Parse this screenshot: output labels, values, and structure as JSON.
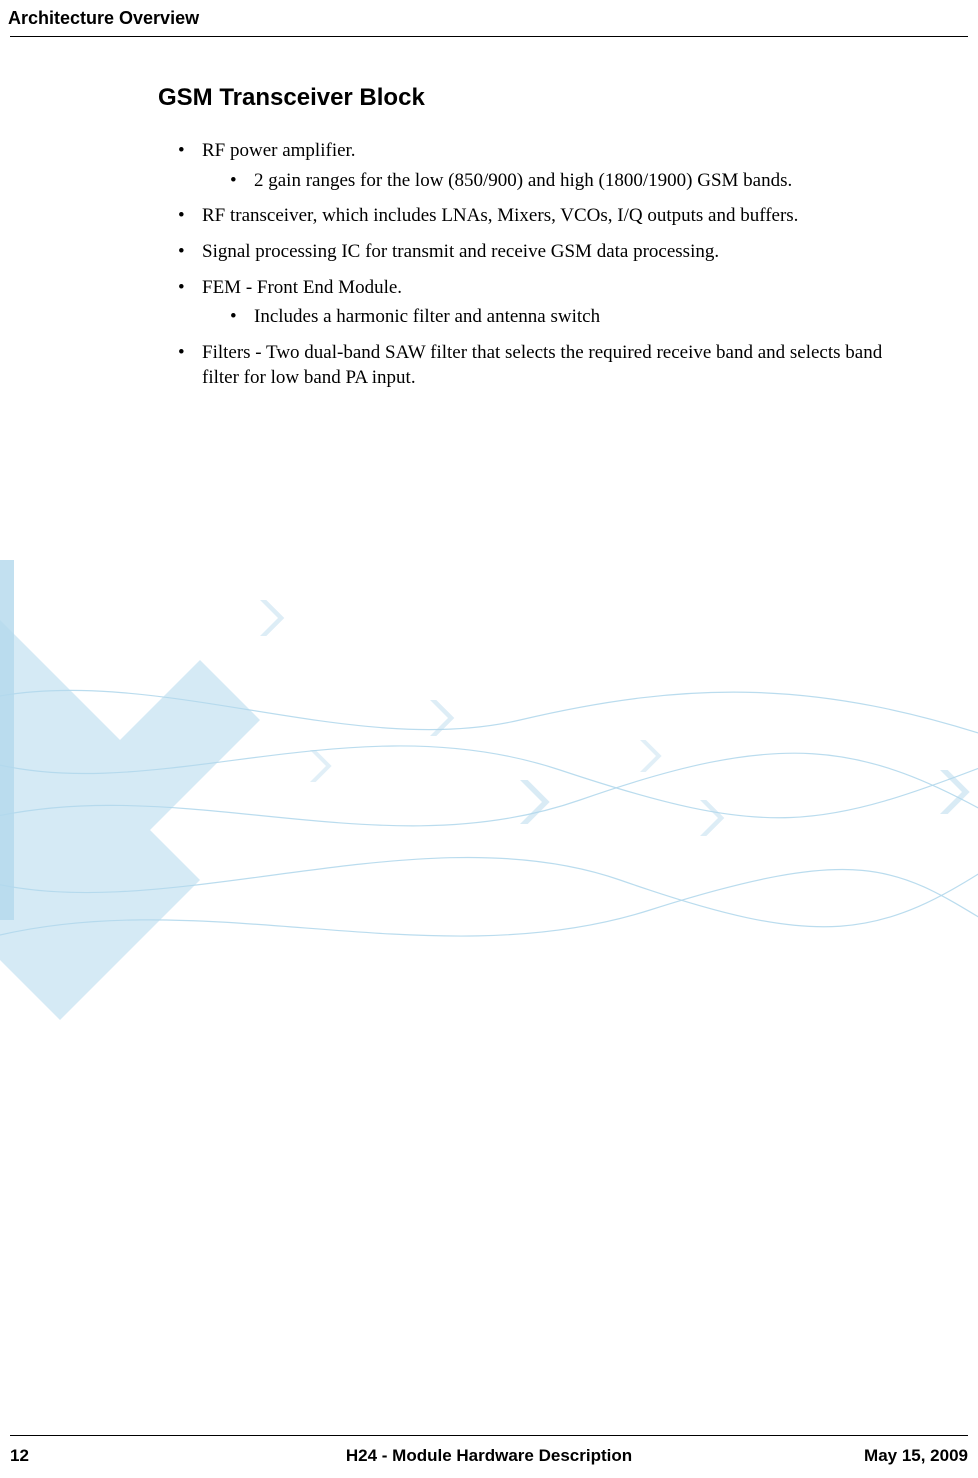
{
  "header": {
    "chapter": "Architecture Overview"
  },
  "section": {
    "title": "GSM Transceiver Block",
    "items": [
      {
        "text": "RF power amplifier.",
        "sub": [
          {
            "text": "2 gain ranges for the low (850/900) and high (1800/1900) GSM bands."
          }
        ]
      },
      {
        "text": "RF transceiver, which includes LNAs, Mixers, VCOs, I/Q outputs and buffers."
      },
      {
        "text": "Signal processing IC for transmit and receive GSM data processing."
      },
      {
        "text": "FEM - Front End Module.",
        "sub": [
          {
            "text": "Includes a harmonic filter and antenna switch"
          }
        ]
      },
      {
        "text": "Filters - Two dual-band SAW filter that selects the required receive band and selects band filter for low band PA input."
      }
    ]
  },
  "footer": {
    "page": "12",
    "title": "H24 - Module Hardware Description",
    "date": "May 15, 2009"
  },
  "bg": {
    "arrow_color": "#b3d8ec",
    "chevron_color": "#b3d8ec",
    "line_color": "#b3d8ec",
    "white": "#ffffff"
  }
}
